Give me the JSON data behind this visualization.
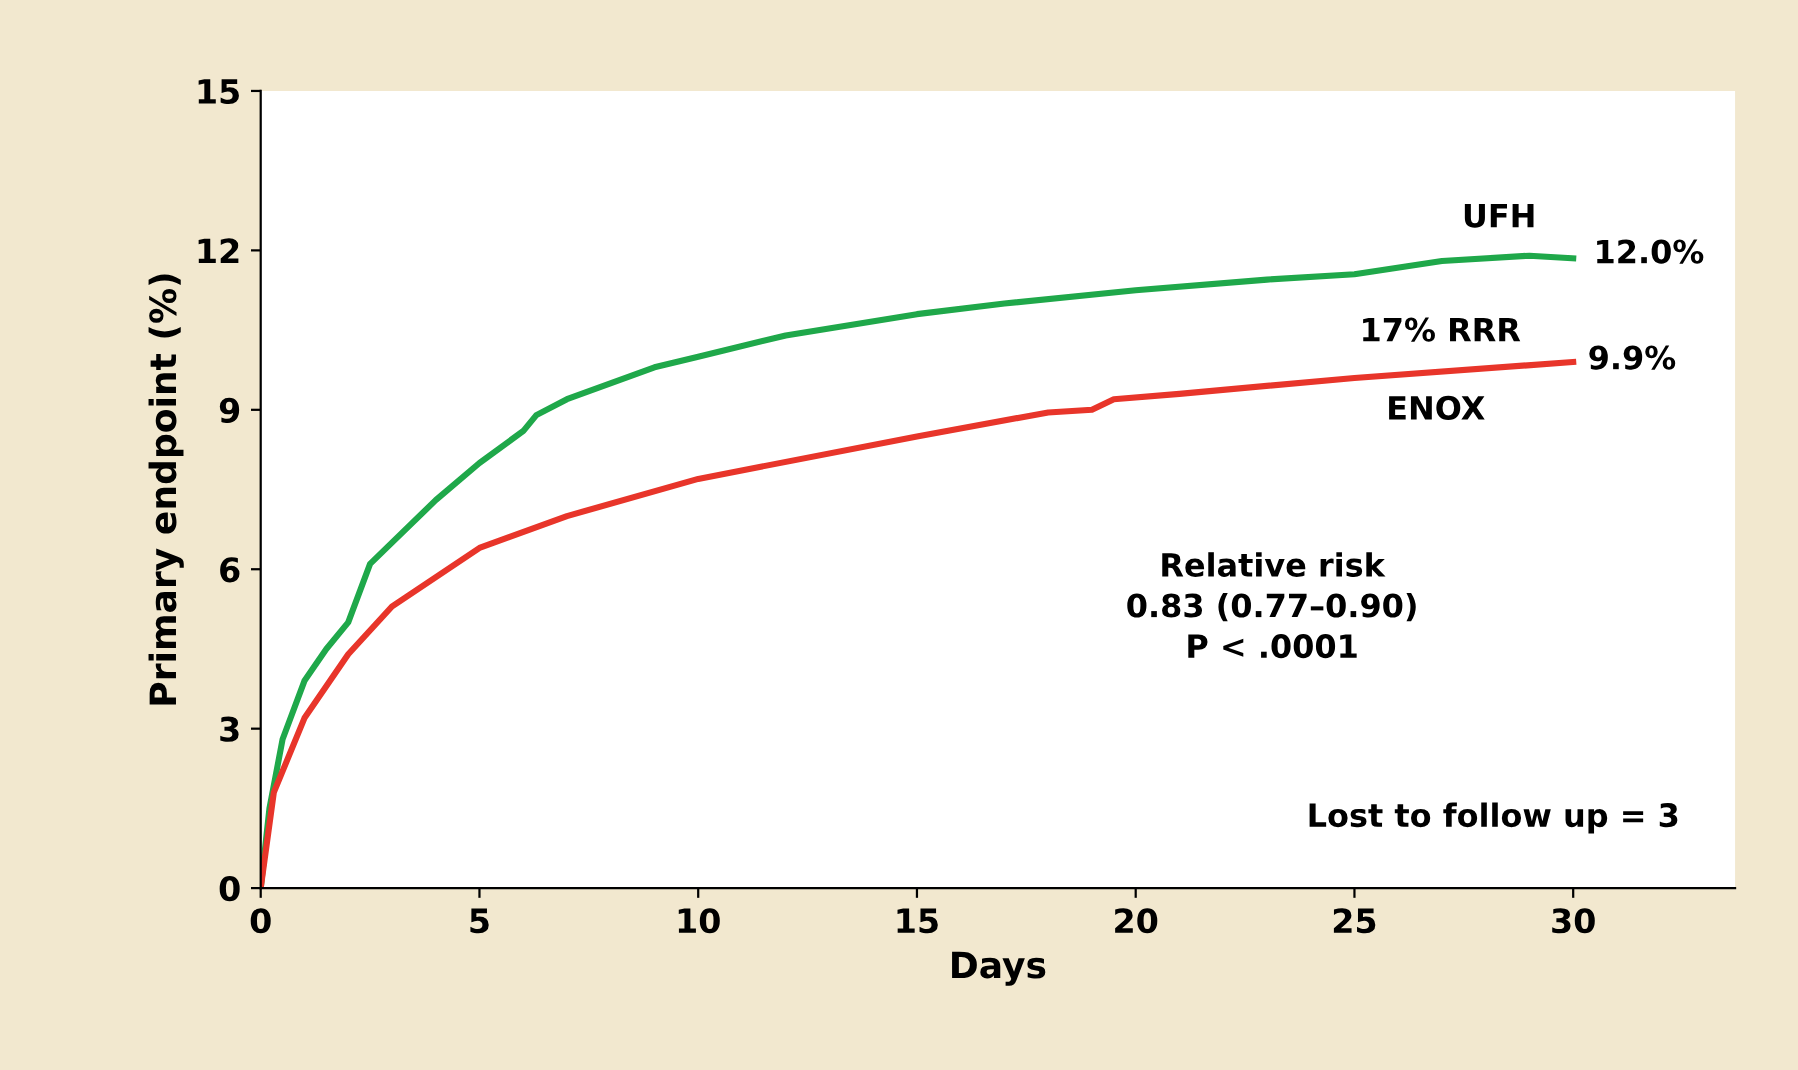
{
  "chart_data": {
    "type": "line",
    "xlabel": "Days",
    "ylabel": "Primary endpoint (%)",
    "xlim": [
      0,
      33.7
    ],
    "ylim": [
      0,
      15
    ],
    "xticks": [
      0,
      5,
      10,
      15,
      20,
      25,
      30
    ],
    "yticks": [
      0,
      3,
      6,
      9,
      12,
      15
    ],
    "grid": false,
    "legend": false,
    "marker": "none",
    "line_style": "solid",
    "series": [
      {
        "color": "#1fa84a",
        "x": [
          0,
          0.2,
          0.5,
          1,
          1.5,
          2,
          2.5,
          3,
          4,
          5,
          6,
          6.3,
          7,
          9,
          10,
          12,
          15,
          17,
          20,
          23,
          25,
          27,
          29,
          30
        ],
        "values": [
          0,
          1.5,
          2.8,
          3.9,
          4.5,
          5.0,
          6.1,
          6.5,
          7.3,
          8.0,
          8.6,
          8.9,
          9.2,
          9.8,
          10.0,
          10.4,
          10.8,
          11.0,
          11.25,
          11.45,
          11.55,
          11.8,
          11.9,
          11.85
        ]
      },
      {
        "color": "#e8352a",
        "x": [
          0,
          0.3,
          1,
          2,
          3,
          5,
          7,
          10,
          15,
          18,
          19,
          19.5,
          21,
          25,
          30
        ],
        "values": [
          0,
          1.8,
          3.2,
          4.4,
          5.3,
          6.4,
          7.0,
          7.7,
          8.5,
          8.95,
          9.0,
          9.2,
          9.3,
          9.6,
          9.9
        ]
      }
    ],
    "annotations": [
      "UFH",
      "12.0%",
      "17% RRR",
      "9.9%",
      "ENOX",
      "Relative risk\n0.83 (0.77–0.90)\nP < .0001",
      "Lost to follow up = 3"
    ]
  }
}
